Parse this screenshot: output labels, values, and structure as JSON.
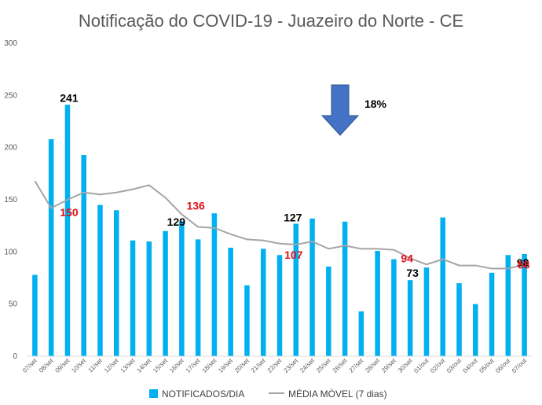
{
  "chart_data": {
    "type": "bar",
    "title": "Notificação do COVID-19 - Juazeiro do Norte - CE",
    "ylim": [
      0,
      300
    ],
    "yticks": [
      0,
      50,
      100,
      150,
      200,
      250,
      300
    ],
    "categories": [
      "07/set",
      "08/set",
      "09/set",
      "10/set",
      "11/set",
      "12/set",
      "13/set",
      "14/set",
      "15/set",
      "16/set",
      "17/set",
      "18/set",
      "19/set",
      "20/set",
      "21/set",
      "22/set",
      "23/set",
      "24/set",
      "25/set",
      "26/set",
      "27/set",
      "28/set",
      "29/set",
      "30/set",
      "01/out",
      "02/out",
      "03/out",
      "04/out",
      "05/out",
      "06/out",
      "07/out"
    ],
    "series": [
      {
        "name": "NOTIFICADOS/DIA",
        "kind": "bar",
        "color": "#00b0f0",
        "values": [
          78,
          208,
          241,
          193,
          145,
          140,
          111,
          110,
          120,
          129,
          112,
          137,
          104,
          68,
          103,
          97,
          127,
          132,
          86,
          129,
          43,
          101,
          93,
          73,
          85,
          133,
          70,
          50,
          80,
          97,
          98
        ]
      },
      {
        "name": "MÉDIA MÓVEL (7 dias)",
        "kind": "line",
        "color": "#a5a5a5",
        "values": [
          168,
          142,
          150,
          157,
          155,
          157,
          160,
          164,
          152,
          136,
          124,
          123,
          117,
          112,
          111,
          108,
          107,
          110,
          103,
          106,
          103,
          103,
          102,
          94,
          88,
          93,
          87,
          87,
          84,
          84,
          88
        ]
      }
    ],
    "annotations": [
      {
        "text": "241",
        "index": 2,
        "value": 241,
        "color": "black"
      },
      {
        "text": "150",
        "index": 2,
        "value": 150,
        "color": "red"
      },
      {
        "text": "136",
        "index": 10,
        "value": 136,
        "color": "red"
      },
      {
        "text": "129",
        "index": 9,
        "value": 129,
        "color": "black"
      },
      {
        "text": "127",
        "index": 16,
        "value": 127,
        "color": "black"
      },
      {
        "text": "107",
        "index": 16,
        "value": 107,
        "color": "red"
      },
      {
        "text": "94",
        "index": 23,
        "value": 94,
        "color": "red"
      },
      {
        "text": "73",
        "index": 23,
        "value": 73,
        "color": "black"
      },
      {
        "text": "98",
        "index": 30,
        "value": 98,
        "color": "black"
      },
      {
        "text": "88",
        "index": 30,
        "value": 88,
        "color": "red"
      }
    ],
    "arrow": {
      "direction": "down",
      "color": "#4472c4",
      "label": "18%"
    },
    "legend_position": "bottom",
    "grid": false
  }
}
